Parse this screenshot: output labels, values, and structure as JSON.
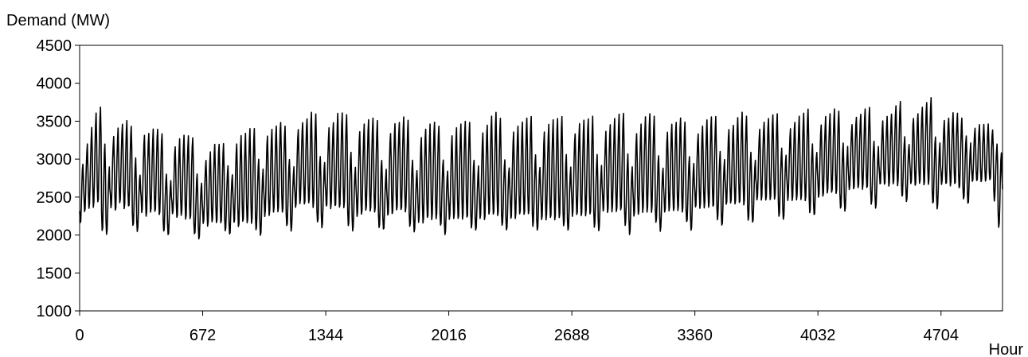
{
  "chart_data": {
    "type": "line",
    "title": "",
    "ylabel": "Demand (MW)",
    "xlabel": "Hour",
    "xlim": [
      0,
      5040
    ],
    "ylim": [
      1000,
      4500
    ],
    "x_ticks": [
      0,
      672,
      1344,
      2016,
      2688,
      3360,
      4032,
      4704
    ],
    "y_ticks": [
      1000,
      1500,
      2000,
      2500,
      3000,
      3500,
      4000,
      4500
    ],
    "grid": false,
    "legend": "none",
    "line_color": "#000000",
    "series": [
      {
        "description": "Hourly electricity demand, daily cycle (24h) with weekly pattern (168h); values are approximate envelope estimates read from the plot",
        "x_start": 0,
        "x_step": 24,
        "daily_min": [
          2150,
          2300,
          2350,
          2350,
          2400,
          2050,
          2000,
          2350,
          2300,
          2400,
          2350,
          2350,
          2100,
          2050,
          2300,
          2250,
          2300,
          2300,
          2250,
          2050,
          2000,
          2250,
          2200,
          2250,
          2200,
          2200,
          2000,
          1950,
          2150,
          2100,
          2150,
          2150,
          2150,
          2050,
          2000,
          2150,
          2100,
          2150,
          2150,
          2150,
          2050,
          2000,
          2250,
          2250,
          2300,
          2300,
          2300,
          2100,
          2050,
          2350,
          2400,
          2400,
          2400,
          2350,
          2150,
          2100,
          2350,
          2350,
          2350,
          2350,
          2350,
          2100,
          2050,
          2250,
          2250,
          2300,
          2300,
          2300,
          2100,
          2050,
          2250,
          2250,
          2300,
          2300,
          2300,
          2100,
          2050,
          2150,
          2150,
          2200,
          2200,
          2200,
          2100,
          2000,
          2200,
          2200,
          2200,
          2200,
          2200,
          2100,
          2050,
          2200,
          2200,
          2250,
          2250,
          2250,
          2100,
          2050,
          2200,
          2200,
          2250,
          2250,
          2250,
          2100,
          2050,
          2200,
          2200,
          2200,
          2200,
          2200,
          2100,
          2050,
          2250,
          2250,
          2250,
          2250,
          2250,
          2100,
          2050,
          2300,
          2300,
          2300,
          2300,
          2300,
          2100,
          2000,
          2250,
          2250,
          2300,
          2300,
          2300,
          2150,
          2050,
          2300,
          2300,
          2300,
          2300,
          2300,
          2150,
          2050,
          2350,
          2350,
          2350,
          2350,
          2350,
          2200,
          2100,
          2400,
          2400,
          2400,
          2400,
          2400,
          2200,
          2150,
          2450,
          2450,
          2450,
          2450,
          2450,
          2250,
          2200,
          2450,
          2450,
          2450,
          2450,
          2450,
          2300,
          2250,
          2500,
          2500,
          2550,
          2550,
          2550,
          2350,
          2300,
          2600,
          2600,
          2600,
          2600,
          2600,
          2400,
          2350,
          2650,
          2650,
          2650,
          2650,
          2650,
          2500,
          2450,
          2650,
          2650,
          2650,
          2650,
          2650,
          2400,
          2350,
          2650,
          2650,
          2650,
          2650,
          2600,
          2450,
          2400,
          2700,
          2700,
          2700,
          2700,
          2700,
          2450,
          2100,
          2400,
          2400,
          2400,
          2400,
          2400
        ],
        "daily_max": [
          2950,
          3200,
          3400,
          3600,
          3700,
          3200,
          2900,
          3300,
          3400,
          3450,
          3500,
          3450,
          3000,
          2800,
          3300,
          3350,
          3400,
          3400,
          3350,
          2800,
          2700,
          3150,
          3250,
          3300,
          3300,
          3300,
          2800,
          2700,
          3000,
          3100,
          3200,
          3200,
          3200,
          2900,
          2800,
          3200,
          3300,
          3350,
          3400,
          3400,
          3000,
          2850,
          3300,
          3400,
          3450,
          3500,
          3450,
          3000,
          2900,
          3400,
          3500,
          3550,
          3600,
          3600,
          3050,
          2950,
          3400,
          3500,
          3600,
          3600,
          3600,
          3100,
          2900,
          3350,
          3450,
          3500,
          3550,
          3500,
          3000,
          2850,
          3350,
          3450,
          3500,
          3550,
          3500,
          3000,
          2850,
          3300,
          3400,
          3450,
          3500,
          3450,
          3000,
          2850,
          3300,
          3400,
          3450,
          3500,
          3500,
          3000,
          2900,
          3350,
          3450,
          3550,
          3600,
          3550,
          3000,
          2900,
          3350,
          3450,
          3500,
          3550,
          3550,
          3050,
          2900,
          3350,
          3450,
          3500,
          3550,
          3550,
          3050,
          2900,
          3350,
          3450,
          3500,
          3550,
          3550,
          3050,
          2900,
          3350,
          3450,
          3550,
          3600,
          3600,
          3050,
          2900,
          3350,
          3450,
          3550,
          3600,
          3550,
          3050,
          2900,
          3350,
          3450,
          3500,
          3550,
          3500,
          3050,
          2950,
          3350,
          3450,
          3500,
          3550,
          3550,
          3100,
          3000,
          3400,
          3450,
          3550,
          3600,
          3550,
          3100,
          3000,
          3400,
          3500,
          3550,
          3600,
          3600,
          3150,
          3050,
          3400,
          3500,
          3550,
          3600,
          3650,
          3200,
          3100,
          3450,
          3550,
          3600,
          3650,
          3650,
          3200,
          3150,
          3450,
          3550,
          3600,
          3650,
          3700,
          3250,
          3150,
          3500,
          3550,
          3600,
          3700,
          3750,
          3300,
          3200,
          3550,
          3600,
          3700,
          3750,
          3800,
          3300,
          3200,
          3500,
          3550,
          3600,
          3600,
          3550,
          3300,
          3200,
          3400,
          3450,
          3450,
          3450,
          3400,
          3200,
          3100,
          3350,
          3400,
          3450,
          3400,
          3400
        ]
      }
    ]
  }
}
